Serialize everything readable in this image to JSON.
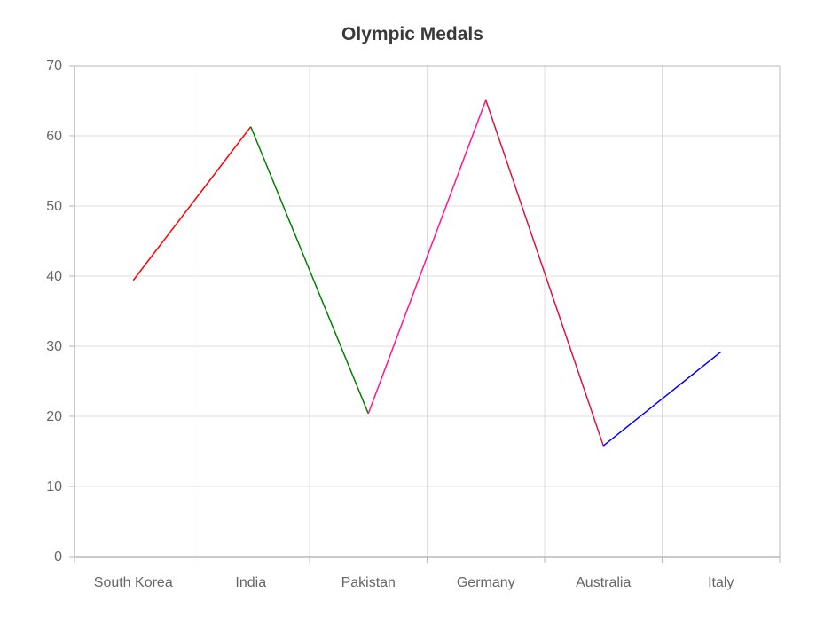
{
  "chart_data": {
    "type": "line",
    "title": "Olympic Medals",
    "xlabel": "",
    "ylabel": "",
    "categories": [
      "South Korea",
      "India",
      "Pakistan",
      "Germany",
      "Australia",
      "Italy"
    ],
    "values": [
      39.4,
      61.3,
      20.4,
      65.1,
      15.8,
      29.2
    ],
    "segment_colors": [
      "#ff0000",
      "#008000",
      "#ff1493",
      "#dc143c",
      "#0000ff"
    ],
    "ylim": [
      0,
      70
    ],
    "yticks": [
      0,
      10,
      20,
      30,
      40,
      50,
      60,
      70
    ],
    "grid": true,
    "legend": "none"
  }
}
